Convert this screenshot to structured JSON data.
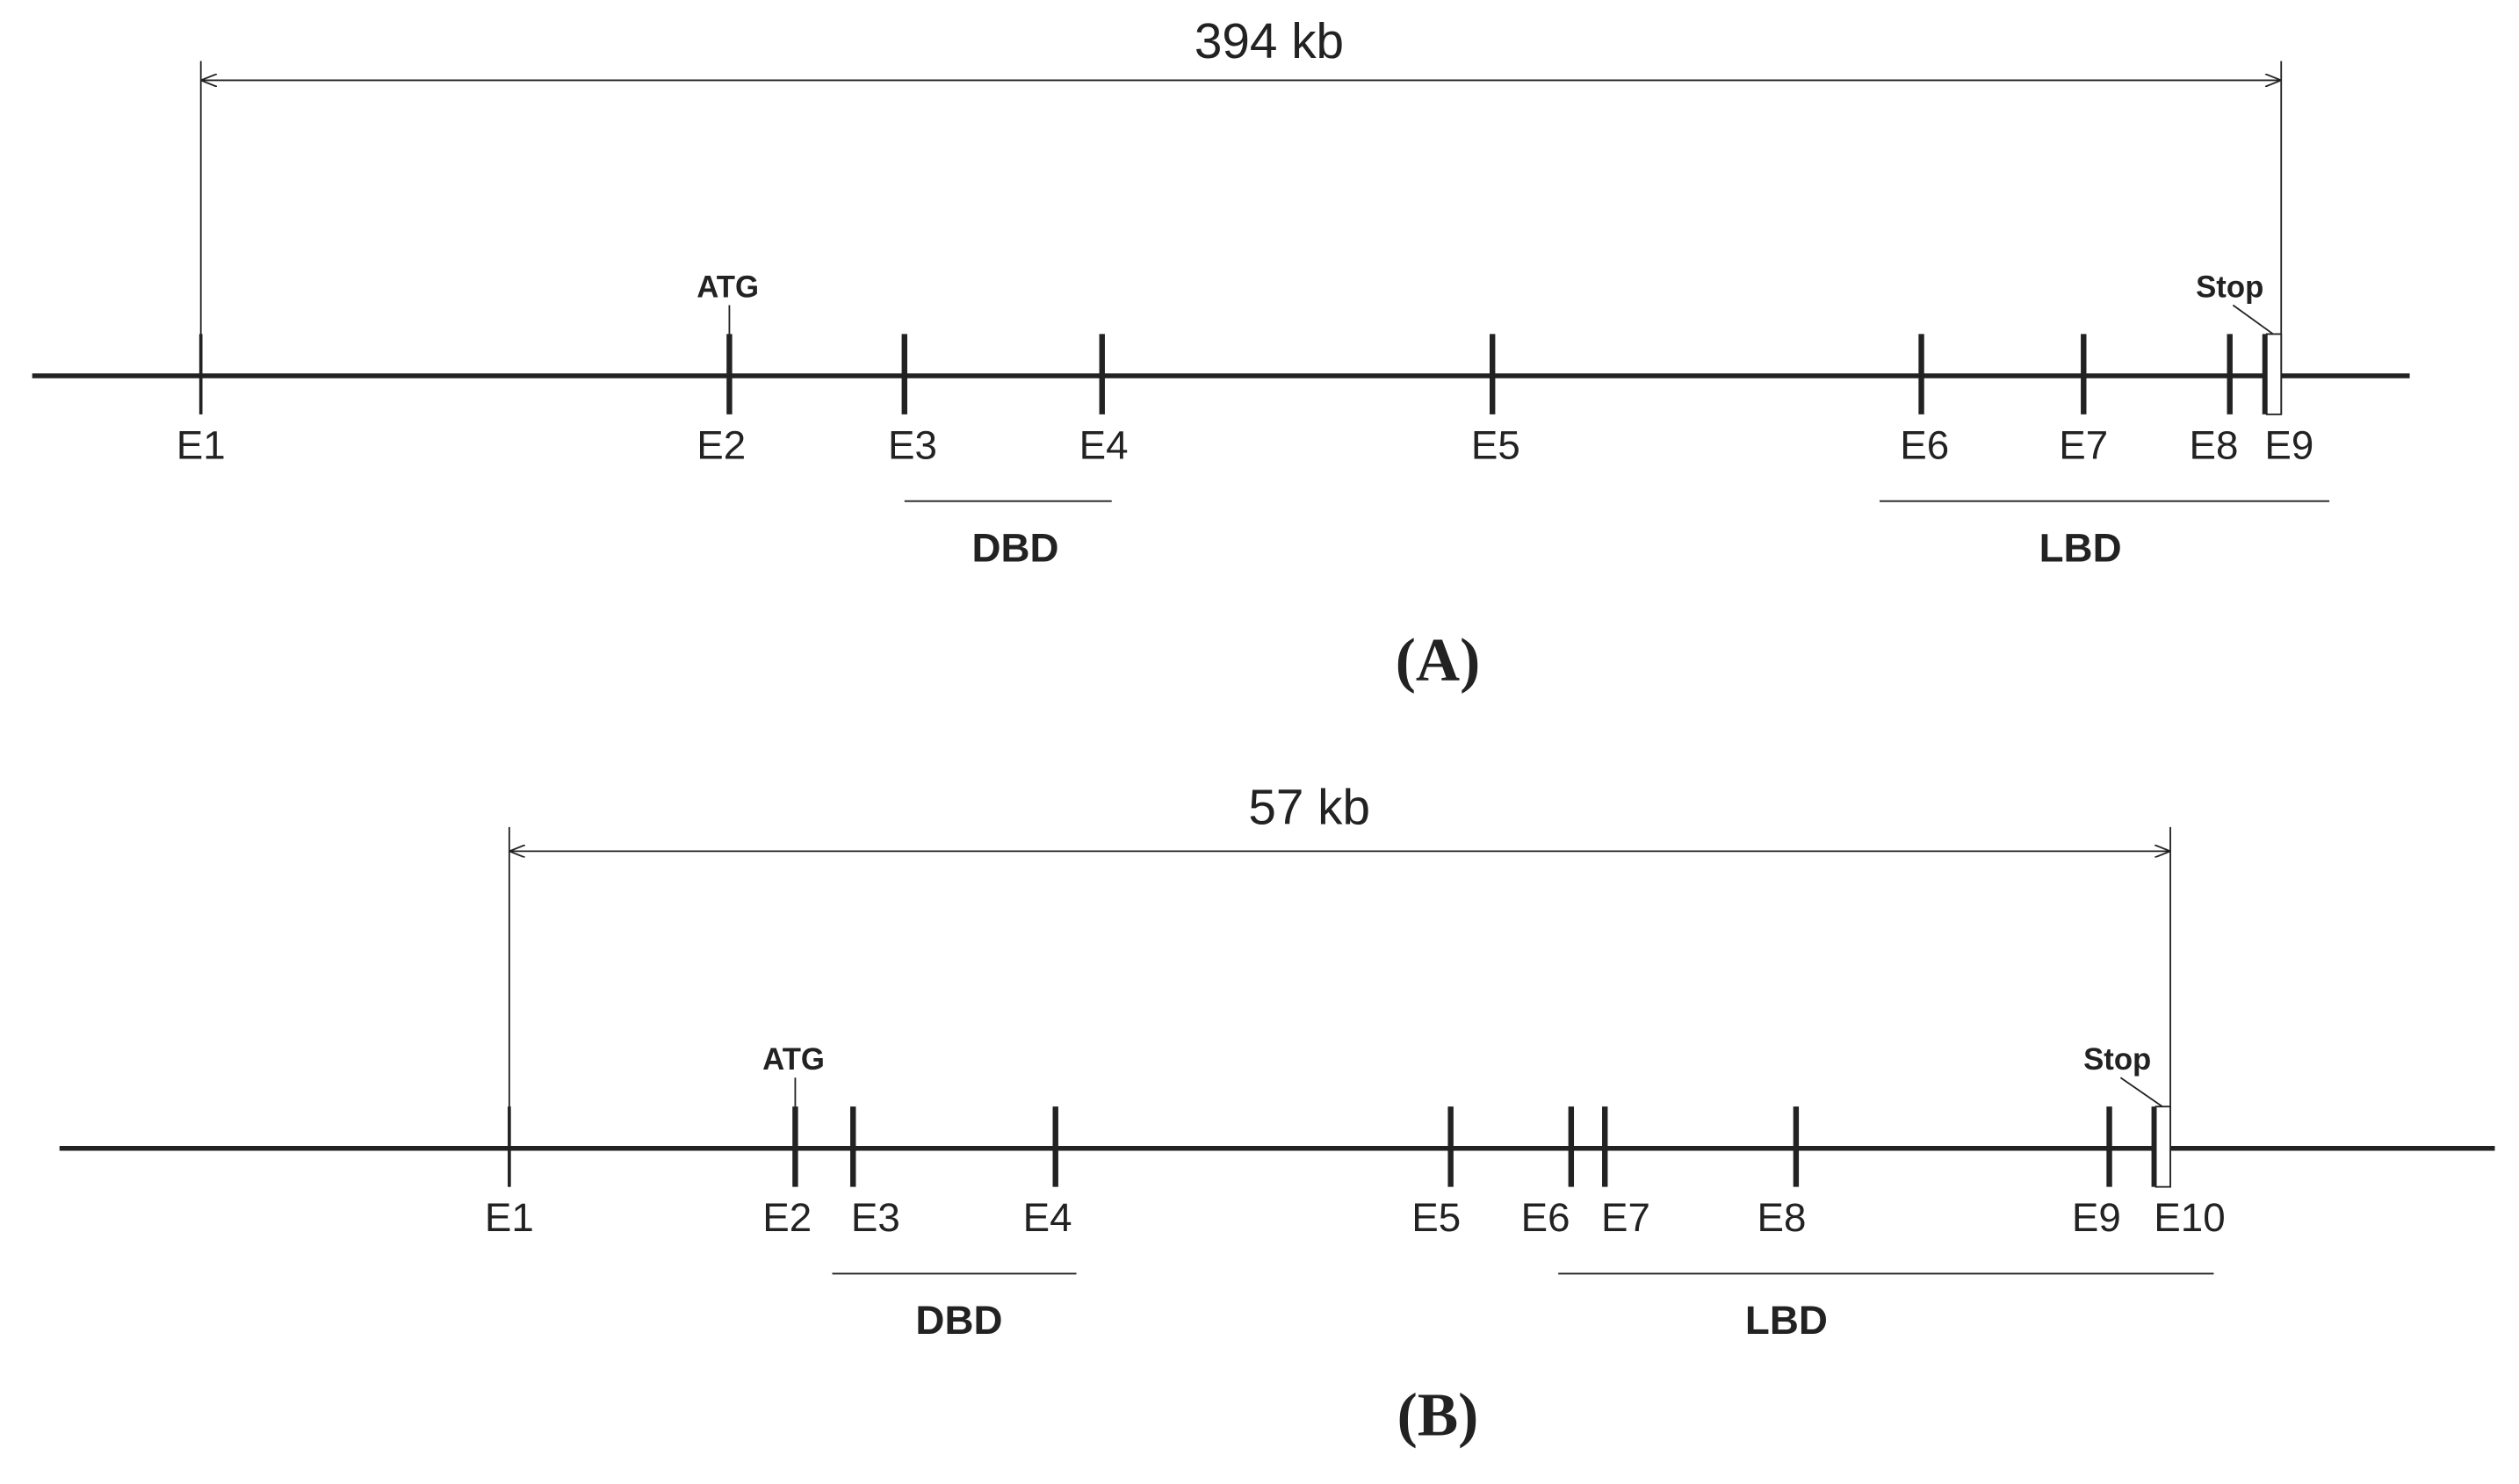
{
  "panels": [
    {
      "length": "394 kb",
      "start": "ATG",
      "stop": "Stop",
      "exons": [
        "E1",
        "E2",
        "E3",
        "E4",
        "E5",
        "E6",
        "E7",
        "E8",
        "E9"
      ],
      "domains": [
        "DBD",
        "LBD"
      ],
      "label": "(A)"
    },
    {
      "length": "57 kb",
      "start": "ATG",
      "stop": "Stop",
      "exons": [
        "E1",
        "E2",
        "E3",
        "E4",
        "E5",
        "E6",
        "E7",
        "E8",
        "E9",
        "E10"
      ],
      "domains": [
        "DBD",
        "LBD"
      ],
      "label": "(B)"
    }
  ]
}
